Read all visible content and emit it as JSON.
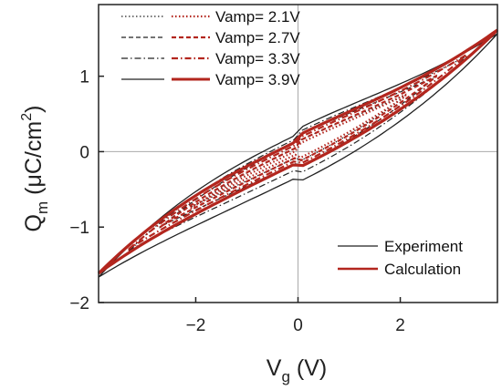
{
  "chart_data": {
    "type": "line",
    "xlabel": {
      "main": "V",
      "sub": "g",
      "unit": " (V)"
    },
    "ylabel": {
      "main": "Q",
      "sub": "m",
      "unit_pre": " (μC/cm",
      "sup": "2",
      "unit_post": ")"
    },
    "xlim": [
      -3.9,
      3.9
    ],
    "ylim": [
      -2.0,
      1.95
    ],
    "xticks": [
      -2,
      0,
      2
    ],
    "yticks": [
      -2,
      -1,
      0,
      1
    ],
    "zero_lines": true,
    "legend_amplitude": [
      {
        "label": "Vamp= 2.1V",
        "style": "dotted"
      },
      {
        "label": "Vamp= 2.7V",
        "style": "dashed"
      },
      {
        "label": "Vamp= 3.3V",
        "style": "dashdot"
      },
      {
        "label": "Vamp= 3.9V",
        "style": "solid"
      }
    ],
    "legend_type": [
      {
        "label": "Experiment",
        "color": "#222222"
      },
      {
        "label": "Calculation",
        "color": "#b3261e"
      }
    ],
    "loop_model": {
      "slope": 0.33,
      "cubic": 0.0055,
      "bump_amp": 0.12,
      "bump_width": 1.8
    },
    "series": [
      {
        "name": "Experiment",
        "amplitude": 2.1,
        "halfwidth": 0.1,
        "offset": 0.0,
        "color": "#222222",
        "style": "dotted"
      },
      {
        "name": "Experiment",
        "amplitude": 2.7,
        "halfwidth": 0.17,
        "offset": 0.0,
        "color": "#222222",
        "style": "dashed"
      },
      {
        "name": "Experiment",
        "amplitude": 3.3,
        "halfwidth": 0.24,
        "offset": -0.02,
        "color": "#222222",
        "style": "dashdot"
      },
      {
        "name": "Experiment",
        "amplitude": 3.9,
        "halfwidth": 0.32,
        "offset": -0.05,
        "color": "#222222",
        "style": "solid"
      },
      {
        "name": "Calculation",
        "amplitude": 2.1,
        "halfwidth": 0.06,
        "offset": 0.0,
        "color": "#b3261e",
        "style": "dotted"
      },
      {
        "name": "Calculation",
        "amplitude": 2.7,
        "halfwidth": 0.1,
        "offset": 0.0,
        "color": "#b3261e",
        "style": "dashed"
      },
      {
        "name": "Calculation",
        "amplitude": 3.3,
        "halfwidth": 0.14,
        "offset": 0.0,
        "color": "#b3261e",
        "style": "dashdot"
      },
      {
        "name": "Calculation",
        "amplitude": 3.9,
        "halfwidth": 0.18,
        "offset": 0.0,
        "color": "#b3261e",
        "style": "solid"
      }
    ]
  }
}
